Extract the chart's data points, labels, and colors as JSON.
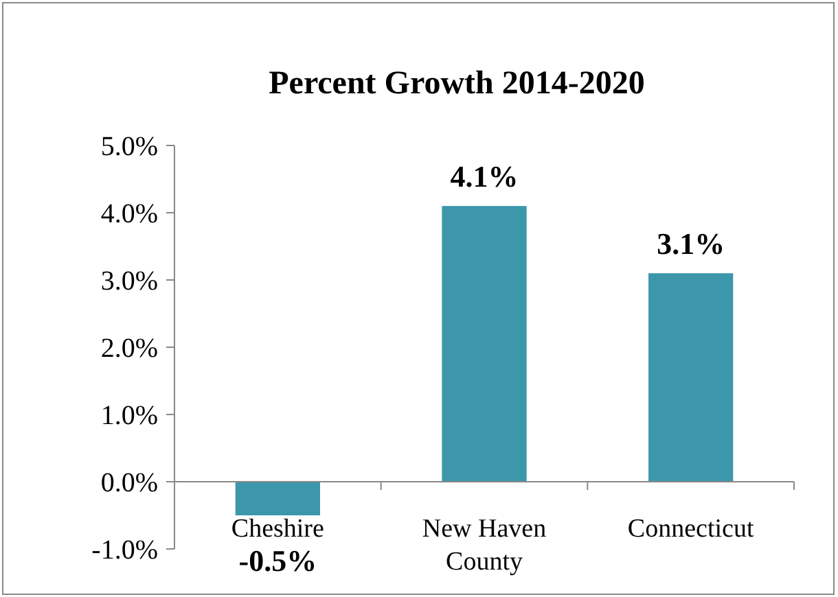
{
  "chart_data": {
    "type": "bar",
    "title": "Percent Growth 2014-2020",
    "categories": [
      "Cheshire",
      "New Haven County",
      "Connecticut"
    ],
    "values": [
      -0.5,
      4.1,
      3.1
    ],
    "value_labels": [
      "-0.5%",
      "4.1%",
      "3.1%"
    ],
    "color": "#3c97ab",
    "ylim": [
      -1,
      5
    ],
    "yticks": [
      {
        "value": -1,
        "label": "-1.0%"
      },
      {
        "value": 0,
        "label": "0.0%"
      },
      {
        "value": 1,
        "label": "1.0%"
      },
      {
        "value": 2,
        "label": "2.0%"
      },
      {
        "value": 3,
        "label": "3.0%"
      },
      {
        "value": 4,
        "label": "4.0%"
      },
      {
        "value": 5,
        "label": "5.0%"
      }
    ],
    "grid": false
  }
}
